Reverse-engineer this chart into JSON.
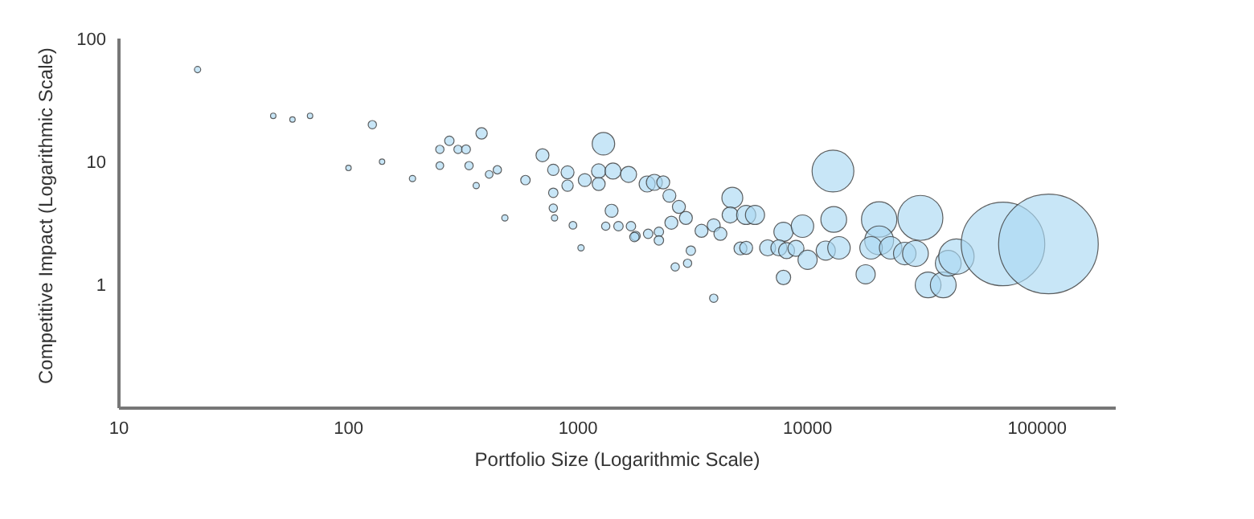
{
  "chart_data": {
    "type": "bubble",
    "xlabel": "Portfolio Size (Logarithmic Scale)",
    "ylabel": "Competitive Impact (Logarithmic Scale)",
    "log": "xy",
    "grid": false,
    "legend": false,
    "xlim": [
      10,
      220000
    ],
    "xticks": [
      10,
      100,
      1000,
      10000,
      100000
    ],
    "ylim": [
      0.1,
      100
    ],
    "yticks": [
      1,
      10,
      100
    ],
    "series": [
      {
        "color": "#aad8f2",
        "x": [
          22,
          47,
          57,
          68,
          127,
          100,
          140,
          190,
          250,
          250,
          275,
          300,
          325,
          335,
          380,
          360,
          410,
          445,
          480,
          590,
          700,
          780,
          780,
          780,
          790,
          950,
          900,
          900,
          1030,
          1070,
          1230,
          1290,
          1230,
          1320,
          1400,
          1420,
          1500,
          1660,
          1700,
          1780,
          2000,
          2150,
          2350,
          2500,
          2750,
          2950,
          2550,
          1760,
          2020,
          2250,
          2250,
          3450,
          3900,
          4170,
          4700,
          4600,
          5400,
          5900,
          3100,
          3000,
          2650,
          3900,
          5100,
          5400,
          6700,
          7850,
          9500,
          7500,
          8100,
          8900,
          10000,
          7850,
          13000,
          12900,
          12000,
          13700,
          20500,
          20500,
          18900,
          17900,
          23000,
          26500,
          31000,
          29500,
          33500,
          39000,
          41000,
          44500,
          71000,
          112000
        ],
        "values": [
          56,
          23.6,
          22,
          23.6,
          20,
          8.9,
          10,
          7.3,
          9.3,
          12.6,
          14.8,
          12.6,
          12.6,
          9.3,
          17,
          6.4,
          7.9,
          8.6,
          3.5,
          7.1,
          11.3,
          8.6,
          5.6,
          4.2,
          3.5,
          3.05,
          6.4,
          8.2,
          2,
          7.1,
          8.4,
          14,
          6.6,
          3,
          4,
          8.4,
          3,
          7.9,
          3,
          2.5,
          6.6,
          6.8,
          6.8,
          5.3,
          4.3,
          3.5,
          3.2,
          2.45,
          2.6,
          2.7,
          2.3,
          2.75,
          3.05,
          2.6,
          5.1,
          3.7,
          3.7,
          3.7,
          1.9,
          1.5,
          1.4,
          0.78,
          1.98,
          2,
          2,
          2.7,
          3,
          2,
          1.9,
          1.98,
          1.6,
          1.15,
          3.4,
          8.4,
          1.9,
          2,
          3.4,
          2.3,
          2,
          1.22,
          2,
          1.8,
          3.5,
          1.8,
          1,
          1,
          1.5,
          1.7,
          2.15,
          2.15
        ],
        "sizes": [
          0.004,
          0.003,
          0.003,
          0.003,
          0.007,
          0.003,
          0.003,
          0.004,
          0.006,
          0.007,
          0.009,
          0.007,
          0.008,
          0.007,
          0.013,
          0.004,
          0.006,
          0.007,
          0.004,
          0.009,
          0.017,
          0.013,
          0.009,
          0.007,
          0.004,
          0.006,
          0.013,
          0.017,
          0.004,
          0.017,
          0.021,
          0.051,
          0.017,
          0.007,
          0.017,
          0.026,
          0.009,
          0.026,
          0.009,
          0.009,
          0.026,
          0.026,
          0.017,
          0.017,
          0.017,
          0.017,
          0.017,
          0.009,
          0.009,
          0.009,
          0.009,
          0.017,
          0.017,
          0.017,
          0.044,
          0.026,
          0.037,
          0.037,
          0.009,
          0.007,
          0.007,
          0.007,
          0.017,
          0.017,
          0.026,
          0.037,
          0.051,
          0.026,
          0.026,
          0.026,
          0.037,
          0.021,
          0.067,
          0.176,
          0.037,
          0.051,
          0.126,
          0.084,
          0.051,
          0.037,
          0.051,
          0.051,
          0.204,
          0.067,
          0.067,
          0.067,
          0.067,
          0.126,
          0.703,
          1
        ]
      }
    ]
  }
}
